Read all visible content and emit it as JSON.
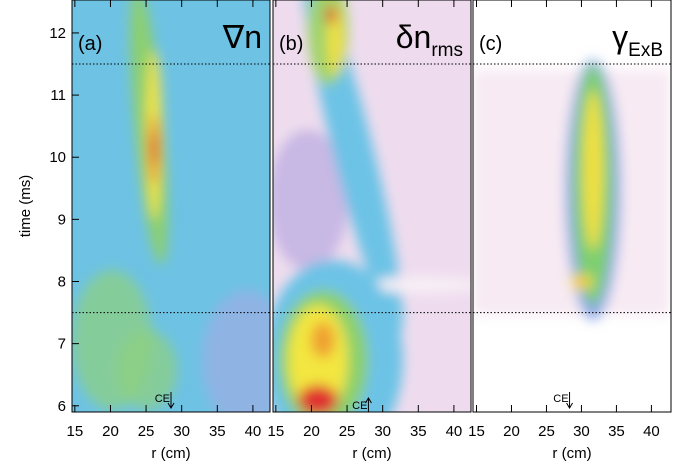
{
  "chart_data": [
    {
      "type": "heatmap",
      "panel_label": "(a)",
      "title": "∇n",
      "xlabel": "r (cm)",
      "ylabel": "time (ms)",
      "xlim": [
        14.6,
        42.4
      ],
      "xticks": [
        15,
        20,
        25,
        30,
        35,
        40
      ],
      "ylim": [
        5.9,
        12.53
      ],
      "yticks": [
        6,
        7,
        8,
        9,
        10,
        11,
        12
      ],
      "hlines": [
        7.5,
        11.5
      ],
      "annotations": [
        {
          "text": "CE",
          "x": 28.5,
          "arrow": "down"
        }
      ]
    },
    {
      "type": "heatmap",
      "panel_label": "(b)",
      "title": "δn",
      "title_sub": "rms",
      "xlabel": "r (cm)",
      "xlim": [
        14.6,
        42.4
      ],
      "xticks": [
        15,
        20,
        25,
        30,
        35,
        40
      ],
      "ylim": [
        5.9,
        12.53
      ],
      "hlines": [
        7.5,
        11.5
      ],
      "annotations": [
        {
          "text": "CE",
          "x": 28,
          "arrow": "up"
        }
      ]
    },
    {
      "type": "heatmap",
      "panel_label": "(c)",
      "title": "γ",
      "title_sub": "ExB",
      "xlabel": "r (cm)",
      "xlim": [
        14.5,
        42.8
      ],
      "xticks": [
        15,
        20,
        25,
        30,
        35,
        40
      ],
      "ylim": [
        5.9,
        12.53
      ],
      "hlines": [
        7.5,
        11.5
      ],
      "annotations": [
        {
          "text": "CE",
          "x": 28.3,
          "arrow": "down"
        }
      ]
    }
  ]
}
